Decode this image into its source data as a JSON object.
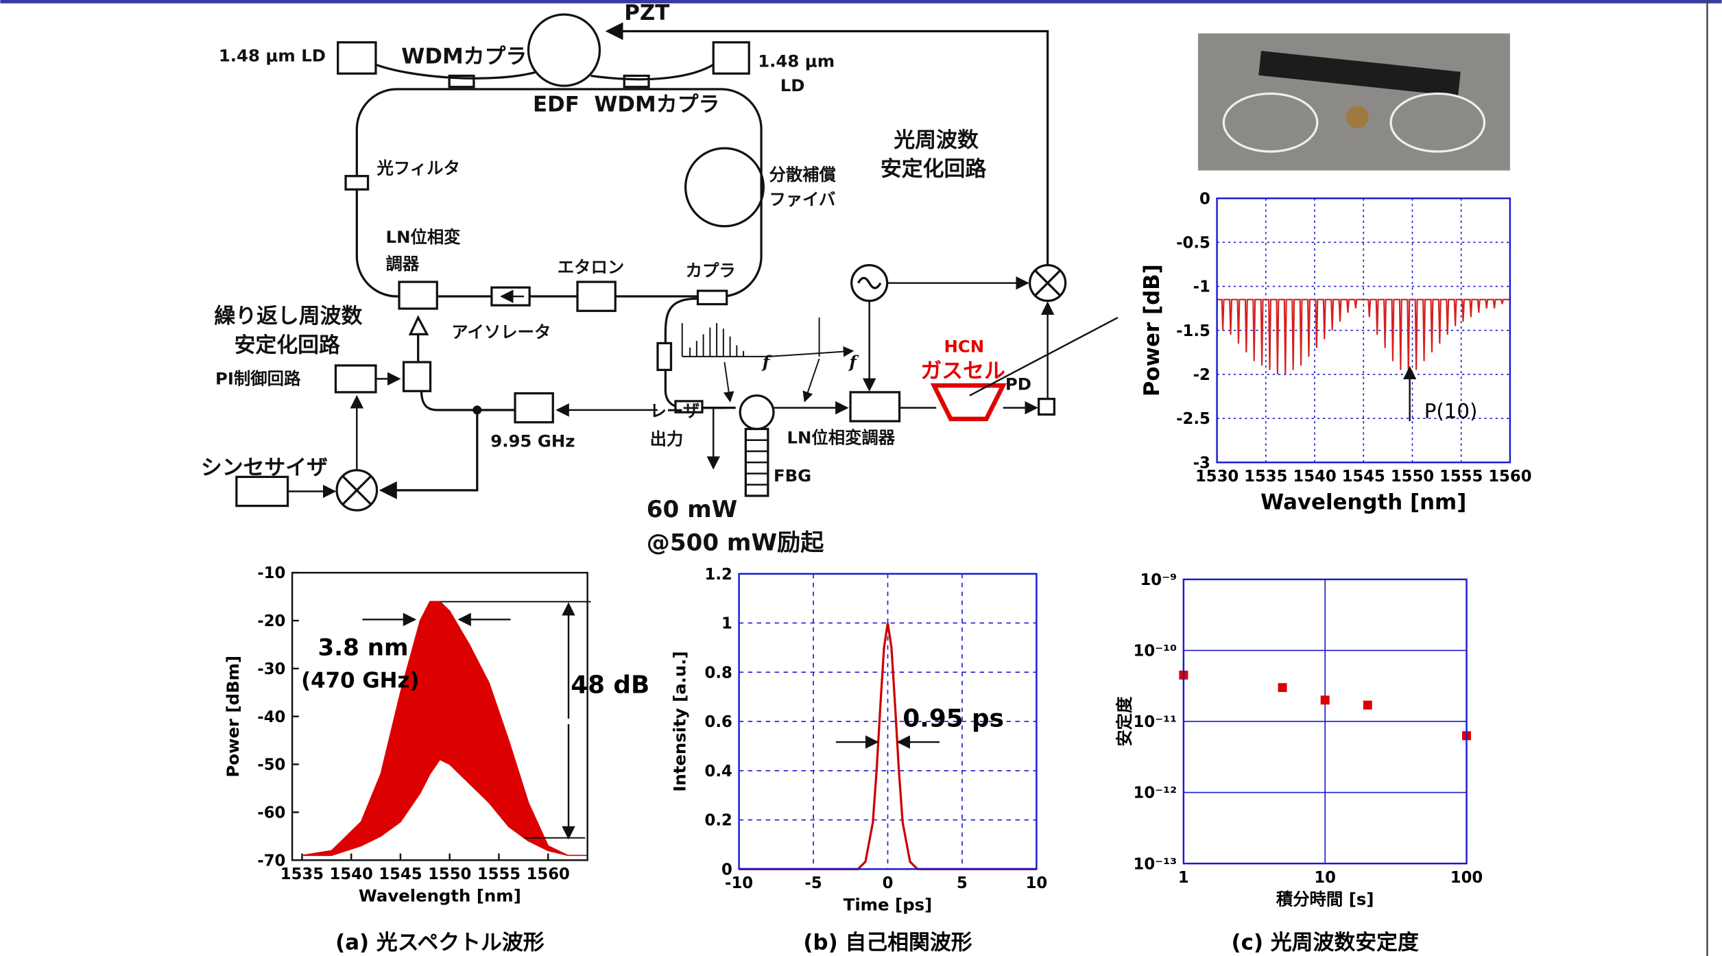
{
  "diagram": {
    "labels": [
      "PZT",
      "1.48 μm LD",
      "WDMカプラ",
      "1.48 μm",
      "LD",
      "EDF",
      "WDMカプラ",
      "光周波数",
      "安定化回路",
      "光フィルタ",
      "分散補償",
      "ファイバ",
      "LN位相変",
      "調器",
      "エタロン",
      "カプラ",
      "繰り返し周波数",
      "安定化回路",
      "アイソレータ",
      "PI制御回路",
      "9.95 GHz",
      "シンセサイザ",
      "レーザ",
      "出力",
      "60 mW",
      "@500 mW励起",
      "FBG",
      "LN位相変調器",
      "HCN",
      "ガスセル",
      "PD",
      "f",
      "f"
    ]
  },
  "chart_data": [
    {
      "type": "line",
      "xlabel": "Wavelength [nm]",
      "ylabel": "Power [dB]",
      "annotations": [
        "P(10)"
      ],
      "xlim": [
        1530,
        1560
      ],
      "xticks": [
        1530,
        1535,
        1540,
        1545,
        1550,
        1555,
        1560
      ],
      "ylim": [
        -3,
        0
      ],
      "yticks": [
        0,
        -0.5,
        -1,
        -1.5,
        -2,
        -2.5,
        -3
      ],
      "grid": true,
      "x": [
        1530,
        1530.5,
        1530.6,
        1530.7,
        1531.3,
        1531.4,
        1531.5,
        1532.1,
        1532.2,
        1532.3,
        1532.9,
        1533,
        1533.1,
        1533.7,
        1533.8,
        1533.9,
        1534.5,
        1534.6,
        1534.7,
        1535.3,
        1535.4,
        1535.5,
        1536.1,
        1536.2,
        1536.3,
        1536.9,
        1537,
        1537.1,
        1537.7,
        1537.8,
        1537.9,
        1538.5,
        1538.6,
        1538.7,
        1539.3,
        1539.4,
        1539.5,
        1540.1,
        1540.2,
        1540.3,
        1540.9,
        1541,
        1541.1,
        1541.7,
        1541.8,
        1541.9,
        1542.5,
        1542.6,
        1542.7,
        1543.3,
        1543.4,
        1543.5,
        1544.1,
        1544.2,
        1544.3,
        1545.5,
        1545.6,
        1545.7,
        1546.3,
        1546.4,
        1546.5,
        1547.1,
        1547.2,
        1547.3,
        1547.9,
        1548,
        1548.1,
        1548.7,
        1548.8,
        1548.9,
        1549.5,
        1549.6,
        1549.7,
        1550.3,
        1550.4,
        1550.5,
        1551.1,
        1551.2,
        1551.3,
        1551.9,
        1552,
        1552.1,
        1552.7,
        1552.8,
        1552.9,
        1553.5,
        1553.6,
        1553.7,
        1554.3,
        1554.4,
        1554.5,
        1555.1,
        1555.2,
        1555.3,
        1555.9,
        1556,
        1556.1,
        1556.7,
        1556.8,
        1556.9,
        1557.5,
        1557.6,
        1557.7,
        1558.3,
        1558.4,
        1558.5,
        1559.1,
        1559.2,
        1559.3,
        1560
      ],
      "series": [
        {
          "color": "#d42020",
          "values": [
            -1.15,
            -1.15,
            -1.5,
            -1.15,
            -1.15,
            -1.55,
            -1.15,
            -1.15,
            -1.65,
            -1.15,
            -1.15,
            -1.75,
            -1.15,
            -1.15,
            -1.85,
            -1.15,
            -1.15,
            -1.9,
            -1.15,
            -1.15,
            -1.95,
            -1.15,
            -1.15,
            -2,
            -1.15,
            -1.15,
            -2,
            -1.15,
            -1.15,
            -1.95,
            -1.15,
            -1.15,
            -1.9,
            -1.15,
            -1.15,
            -1.8,
            -1.15,
            -1.15,
            -1.7,
            -1.15,
            -1.15,
            -1.6,
            -1.15,
            -1.15,
            -1.5,
            -1.15,
            -1.15,
            -1.4,
            -1.15,
            -1.15,
            -1.3,
            -1.15,
            -1.15,
            -1.25,
            -1.15,
            -1.15,
            -1.35,
            -1.15,
            -1.15,
            -1.55,
            -1.15,
            -1.15,
            -1.7,
            -1.15,
            -1.15,
            -1.85,
            -1.15,
            -1.15,
            -1.95,
            -1.15,
            -1.15,
            -2,
            -1.15,
            -1.15,
            -1.95,
            -1.15,
            -1.15,
            -1.85,
            -1.15,
            -1.15,
            -1.75,
            -1.15,
            -1.15,
            -1.65,
            -1.15,
            -1.15,
            -1.55,
            -1.15,
            -1.15,
            -1.45,
            -1.15,
            -1.15,
            -1.4,
            -1.15,
            -1.15,
            -1.35,
            -1.15,
            -1.15,
            -1.3,
            -1.15,
            -1.15,
            -1.25,
            -1.15,
            -1.15,
            -1.25,
            -1.15,
            -1.15,
            -1.2,
            -1.15,
            -1.15
          ]
        }
      ]
    },
    {
      "type": "area",
      "title": "(a) 光スペクトル波形",
      "xlabel": "Wavelength [nm]",
      "ylabel": "Power [dBm]",
      "annotations": [
        "3.8 nm",
        "(470 GHz)",
        "48 dB"
      ],
      "xlim": [
        1534,
        1564
      ],
      "xticks": [
        1535,
        1540,
        1545,
        1550,
        1555,
        1560
      ],
      "ylim": [
        -70,
        -10
      ],
      "yticks": [
        -10,
        -20,
        -30,
        -40,
        -50,
        -60,
        -70
      ],
      "grid": false,
      "x": [
        1535,
        1538,
        1541,
        1543,
        1545,
        1547,
        1548,
        1549,
        1550,
        1552,
        1554,
        1556,
        1558,
        1560,
        1562,
        1564
      ],
      "series": [
        {
          "color": "#dd0000",
          "values": [
            -69,
            -68,
            -62,
            -52,
            -35,
            -20,
            -16,
            -16,
            -18,
            -25,
            -33,
            -45,
            -58,
            -67,
            -69,
            -69
          ]
        },
        {
          "color": "#dd0000",
          "values": [
            -69,
            -69,
            -67,
            -65,
            -62,
            -56,
            -52,
            -49,
            -50,
            -54,
            -58,
            -63,
            -66,
            -68,
            -69,
            -69
          ]
        }
      ]
    },
    {
      "type": "line",
      "title": "(b) 自己相関波形",
      "xlabel": "Time [ps]",
      "ylabel": "Intensity [a.u.]",
      "annotations": [
        "0.95 ps"
      ],
      "xlim": [
        -10,
        10
      ],
      "xticks": [
        -10,
        -5,
        0,
        5,
        10
      ],
      "ylim": [
        0,
        1.2
      ],
      "yticks": [
        0,
        0.2,
        0.4,
        0.6,
        0.8,
        1,
        1.2
      ],
      "grid": true,
      "x": [
        -10,
        -3,
        -2,
        -1.5,
        -1,
        -0.75,
        -0.5,
        -0.25,
        0,
        0.25,
        0.5,
        0.75,
        1,
        1.5,
        2,
        3,
        10
      ],
      "series": [
        {
          "color": "#cc0000",
          "values": [
            0,
            0,
            0,
            0.03,
            0.19,
            0.4,
            0.66,
            0.9,
            1,
            0.9,
            0.66,
            0.4,
            0.19,
            0.03,
            0,
            0,
            0
          ]
        }
      ]
    },
    {
      "type": "scatter",
      "title": "(c) 光周波数安定度",
      "xlabel": "積分時間 [s]",
      "ylabel": "安定度",
      "annotations": [],
      "xlog": true,
      "ylog": true,
      "xlim": [
        1,
        100
      ],
      "xticks": [
        1,
        10,
        100
      ],
      "ylim": [
        1e-13,
        1e-09
      ],
      "yticks": [
        {
          "value": 1e-09,
          "label": "10⁻⁹"
        },
        {
          "value": 1e-10,
          "label": "10⁻¹⁰"
        },
        {
          "value": 1e-11,
          "label": "10⁻¹¹"
        },
        {
          "value": 1e-12,
          "label": "10⁻¹²"
        },
        {
          "value": 1e-13,
          "label": "10⁻¹³"
        }
      ],
      "grid": true,
      "x": [
        1,
        5,
        10,
        20,
        100
      ],
      "series": [
        {
          "color": "#dd0000",
          "values": [
            4.5e-11,
            3e-11,
            2e-11,
            1.7e-11,
            6.3e-12
          ]
        }
      ]
    }
  ]
}
